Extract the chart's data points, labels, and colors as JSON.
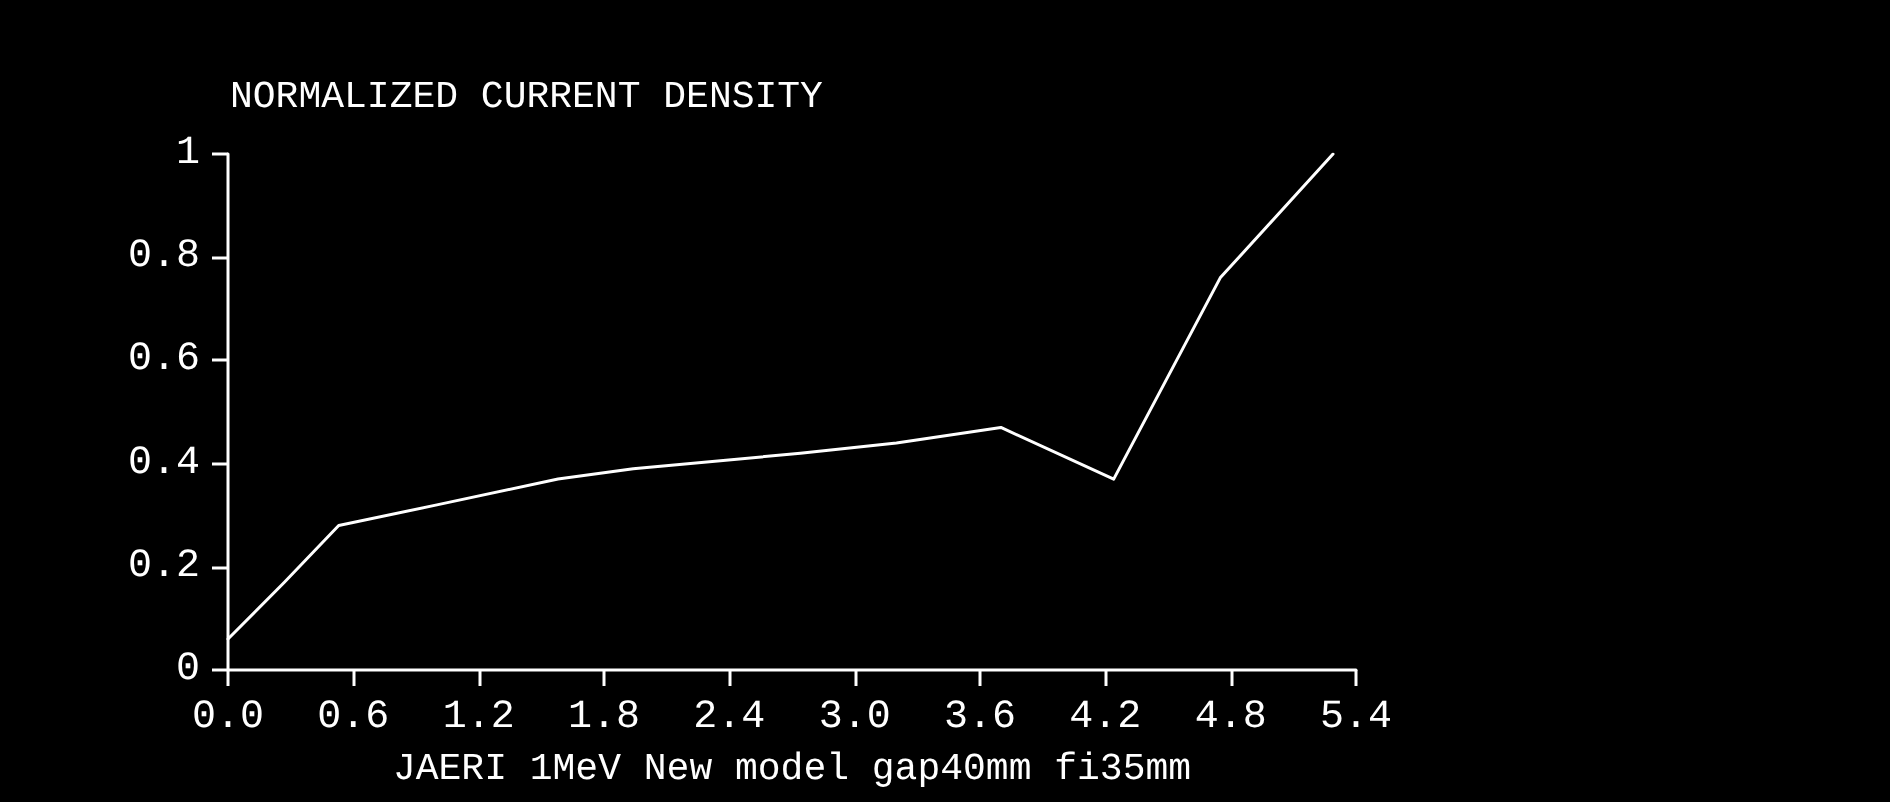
{
  "chart_data": {
    "type": "line",
    "title": "NORMALIZED CURRENT DENSITY",
    "xlabel": "JAERI 1MeV New model gap40mm fi35mm",
    "x": [
      0,
      0.27,
      0.53,
      1.0,
      1.58,
      1.94,
      2.74,
      3.2,
      3.7,
      4.24,
      4.75,
      5.29
    ],
    "series": [
      {
        "color": "#ffffff",
        "values": [
          0.06,
          0.17,
          0.28,
          0.32,
          0.37,
          0.39,
          0.42,
          0.44,
          0.47,
          0.37,
          0.76,
          1.0
        ]
      }
    ],
    "xlim": [
      0,
      5.4
    ],
    "xticks": [
      {
        "value": 0,
        "label": "0.0"
      },
      0.6,
      1.2,
      1.8,
      2.4,
      {
        "value": 3,
        "label": "3.0"
      },
      3.6,
      4.2,
      4.8,
      5.4
    ],
    "ylim": [
      0,
      1
    ],
    "yticks": [
      0,
      0.2,
      0.4,
      0.6,
      0.8,
      1
    ],
    "marker": "none",
    "line_style": "solid"
  }
}
